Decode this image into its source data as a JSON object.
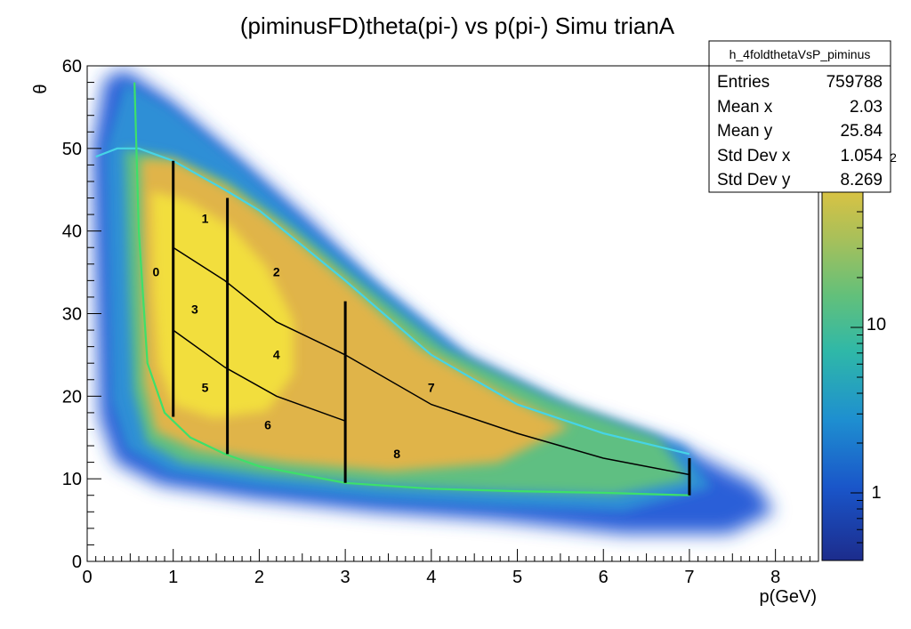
{
  "chart_data": {
    "type": "heatmap",
    "title": "(piminusFD)theta(pi-)  vs p(pi-) Simu trianA",
    "xlabel": "p(GeV)",
    "ylabel": "θ",
    "xlim": [
      0,
      8.5
    ],
    "ylim": [
      0,
      60
    ],
    "x_ticks": [
      "0",
      "1",
      "2",
      "3",
      "4",
      "5",
      "6",
      "7",
      "8"
    ],
    "y_ticks": [
      "0",
      "10",
      "20",
      "30",
      "40",
      "50",
      "60"
    ],
    "z_scale": "log",
    "z_ticks": [
      "1",
      "10"
    ],
    "z_partial_label": "2",
    "stats": {
      "name": "h_4foldthetaVsP_piminus",
      "rows": [
        {
          "label": "Entries",
          "value": "759788"
        },
        {
          "label": "Mean x",
          "value": "2.03"
        },
        {
          "label": "Mean y",
          "value": "25.84"
        },
        {
          "label": "Std Dev x",
          "value": "1.054"
        },
        {
          "label": "Std Dev y",
          "value": "8.269"
        }
      ]
    },
    "cyan_upper_curve": [
      [
        0.1,
        49
      ],
      [
        0.35,
        50
      ],
      [
        0.6,
        50
      ],
      [
        1.0,
        48.5
      ],
      [
        1.6,
        45
      ],
      [
        2.0,
        42.5
      ],
      [
        3.0,
        34
      ],
      [
        4.0,
        25
      ],
      [
        5.0,
        19
      ],
      [
        6.0,
        15.5
      ],
      [
        7.0,
        13
      ]
    ],
    "green_lower_curve": [
      [
        0.55,
        58
      ],
      [
        0.6,
        40
      ],
      [
        0.7,
        24
      ],
      [
        0.9,
        18
      ],
      [
        1.2,
        15
      ],
      [
        1.6,
        13
      ],
      [
        2.0,
        11.5
      ],
      [
        3.0,
        9.5
      ],
      [
        4.0,
        8.8
      ],
      [
        5.0,
        8.5
      ],
      [
        6.0,
        8.3
      ],
      [
        7.0,
        8.0
      ]
    ],
    "upper_divider_curve": [
      [
        1.0,
        38
      ],
      [
        1.6,
        34
      ],
      [
        2.2,
        29
      ],
      [
        3.0,
        25
      ],
      [
        4.0,
        19
      ],
      [
        5.0,
        15.5
      ],
      [
        6.0,
        12.5
      ],
      [
        7.0,
        10.5
      ]
    ],
    "lower_divider_curve": [
      [
        1.0,
        28
      ],
      [
        1.6,
        23.5
      ],
      [
        2.2,
        20
      ],
      [
        3.0,
        17
      ],
      [
        3.0,
        17
      ]
    ],
    "vertical_cuts": [
      {
        "x": 1.0,
        "y_range": [
          17.5,
          48.5
        ]
      },
      {
        "x": 1.63,
        "y_range": [
          13,
          44
        ]
      },
      {
        "x": 3.0,
        "y_range": [
          9.5,
          31.5
        ]
      },
      {
        "x": 7.0,
        "y_range": [
          8,
          12.5
        ]
      }
    ],
    "region_labels": [
      {
        "text": "0",
        "x": 0.8,
        "y": 34.5
      },
      {
        "text": "1",
        "x": 1.37,
        "y": 41
      },
      {
        "text": "2",
        "x": 2.2,
        "y": 34.5
      },
      {
        "text": "3",
        "x": 1.25,
        "y": 30
      },
      {
        "text": "4",
        "x": 2.2,
        "y": 24.5
      },
      {
        "text": "5",
        "x": 1.37,
        "y": 20.5
      },
      {
        "text": "6",
        "x": 2.1,
        "y": 16
      },
      {
        "text": "7",
        "x": 4.0,
        "y": 20.5
      },
      {
        "text": "8",
        "x": 3.6,
        "y": 12.5
      }
    ]
  }
}
